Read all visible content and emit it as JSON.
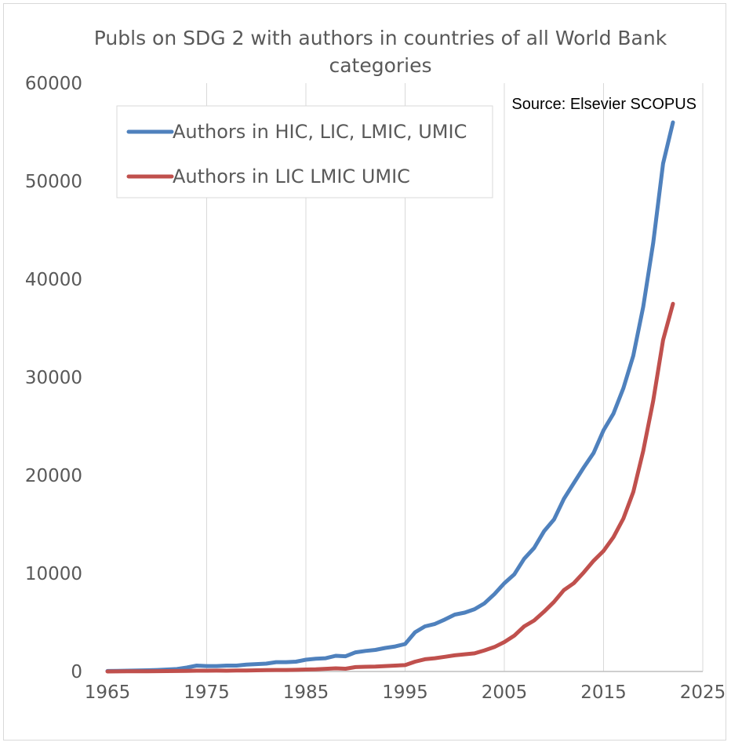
{
  "chart_data": {
    "type": "line",
    "title": "Publs on SDG 2 with authors in countries of all World Bank categories",
    "title_lines": [
      "Publs on SDG 2 with authors in countries of all World Bank",
      "categories"
    ],
    "annotation": "Source: Elsevier SCOPUS",
    "xlabel": "",
    "ylabel": "",
    "xlim": [
      1965,
      2025
    ],
    "ylim": [
      0,
      60000
    ],
    "x_ticks": [
      "1965",
      "1975",
      "1985",
      "1995",
      "2005",
      "2015",
      "2025"
    ],
    "y_ticks": [
      "0",
      "10000",
      "20000",
      "30000",
      "40000",
      "50000",
      "60000"
    ],
    "grid": "vertical",
    "legend_position": "top-left",
    "x": [
      1965,
      1966,
      1967,
      1968,
      1969,
      1970,
      1971,
      1972,
      1973,
      1974,
      1975,
      1976,
      1977,
      1978,
      1979,
      1980,
      1981,
      1982,
      1983,
      1984,
      1985,
      1986,
      1987,
      1988,
      1989,
      1990,
      1991,
      1992,
      1993,
      1994,
      1995,
      1996,
      1997,
      1998,
      1999,
      2000,
      2001,
      2002,
      2003,
      2004,
      2005,
      2006,
      2007,
      2008,
      2009,
      2010,
      2011,
      2012,
      2013,
      2014,
      2015,
      2016,
      2017,
      2018,
      2019,
      2020,
      2021,
      2022
    ],
    "series": [
      {
        "name": "Authors in HIC, LIC, LMIC, UMIC",
        "color": "#4f81bd",
        "values": [
          50,
          60,
          80,
          100,
          120,
          150,
          200,
          250,
          400,
          600,
          550,
          550,
          600,
          600,
          700,
          750,
          800,
          950,
          950,
          1000,
          1200,
          1300,
          1350,
          1600,
          1550,
          1950,
          2100,
          2200,
          2400,
          2550,
          2800,
          4000,
          4600,
          4850,
          5300,
          5800,
          6000,
          6350,
          6950,
          7900,
          9000,
          9900,
          11500,
          12600,
          14300,
          15500,
          17600,
          19200,
          20800,
          22300,
          24600,
          26300,
          28900,
          32200,
          37200,
          43700,
          51800,
          56000
        ]
      },
      {
        "name": "Authors in LIC LMIC UMIC",
        "color": "#c0504d",
        "values": [
          0,
          10,
          15,
          20,
          25,
          30,
          40,
          50,
          60,
          80,
          80,
          90,
          80,
          100,
          100,
          120,
          140,
          150,
          150,
          170,
          200,
          220,
          270,
          320,
          280,
          450,
          480,
          500,
          550,
          600,
          650,
          1000,
          1250,
          1350,
          1500,
          1650,
          1750,
          1850,
          2150,
          2500,
          3000,
          3650,
          4600,
          5200,
          6100,
          7100,
          8300,
          9000,
          10100,
          11300,
          12300,
          13700,
          15600,
          18300,
          22500,
          27600,
          33800,
          37500
        ]
      }
    ]
  }
}
